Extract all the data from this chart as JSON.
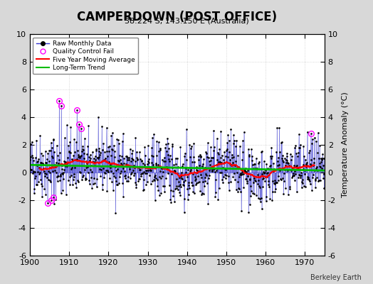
{
  "title": "CAMPERDOWN (POST OFFICE)",
  "subtitle": "38.224 S, 143.150 E (Australia)",
  "ylabel": "Temperature Anomaly (°C)",
  "credit": "Berkeley Earth",
  "ylim": [
    -6,
    10
  ],
  "yticks": [
    -6,
    -4,
    -2,
    0,
    2,
    4,
    6,
    8,
    10
  ],
  "xlim": [
    1900,
    1975
  ],
  "xticks": [
    1900,
    1910,
    1920,
    1930,
    1940,
    1950,
    1960,
    1970
  ],
  "fig_bg_color": "#d8d8d8",
  "plot_bg": "#ffffff",
  "raw_line_color": "#3333cc",
  "raw_dot_color": "#000000",
  "qc_fail_color": "#ff00ff",
  "moving_avg_color": "#ff0000",
  "trend_color": "#00bb00",
  "seed": 42,
  "n_months": 900,
  "start_year": 1900.0
}
